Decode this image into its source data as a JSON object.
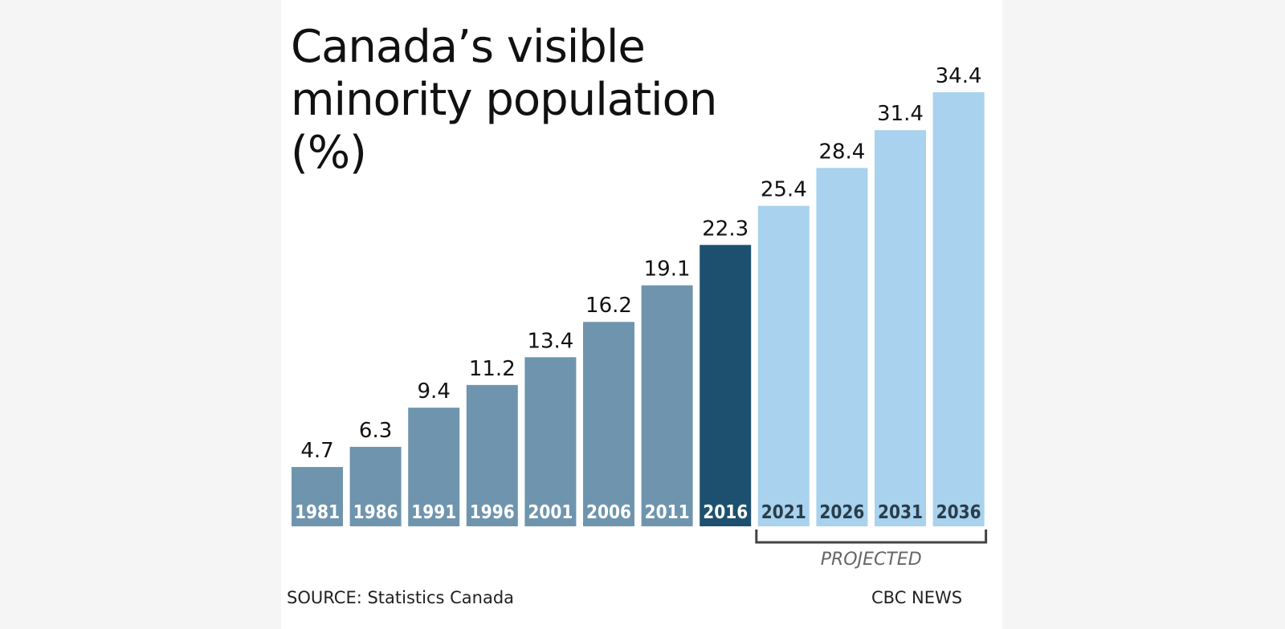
{
  "header": {
    "title_lines": [
      "Canada’s visible",
      "minority population",
      "(%)"
    ]
  },
  "chart_data": {
    "type": "bar",
    "title": "Canada’s visible minority population (%)",
    "categories": [
      "1981",
      "1986",
      "1991",
      "1996",
      "2001",
      "2006",
      "2011",
      "2016",
      "2021",
      "2026",
      "2031",
      "2036"
    ],
    "values": [
      4.7,
      6.3,
      9.4,
      11.2,
      13.4,
      16.2,
      19.1,
      22.3,
      25.4,
      28.4,
      31.4,
      34.4
    ],
    "value_labels": [
      "4.7",
      "6.3",
      "9.4",
      "11.2",
      "13.4",
      "16.2",
      "19.1",
      "22.3",
      "25.4",
      "28.4",
      "31.4",
      "34.4"
    ],
    "bar_status": [
      "historical",
      "historical",
      "historical",
      "historical",
      "historical",
      "historical",
      "historical",
      "current",
      "projected",
      "projected",
      "projected",
      "projected"
    ],
    "annotation": "PROJECTED",
    "ylim": [
      0,
      34.4
    ],
    "grid": false,
    "colors": {
      "historical": "#6f95ae",
      "current": "#1d506e",
      "projected": "#a8d2ee",
      "label_on_dark": "#ffffff",
      "label_on_light": "#2a3d4a",
      "value_text": "#111111",
      "bracket": "#444444",
      "annotation_text": "#666666"
    }
  },
  "footer": {
    "source": "SOURCE: Statistics Canada",
    "brand": "CBC NEWS"
  }
}
